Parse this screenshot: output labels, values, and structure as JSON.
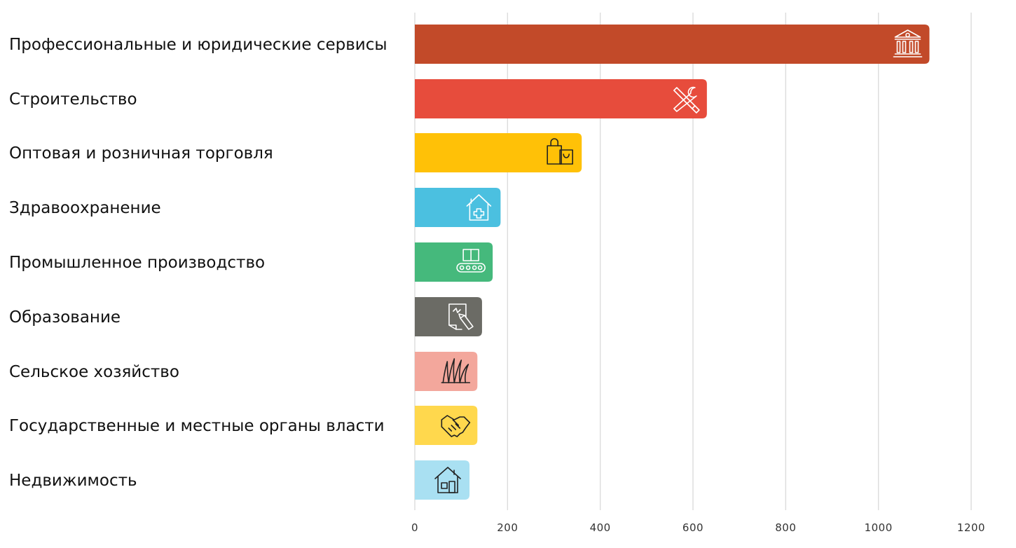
{
  "chart_data": {
    "type": "bar",
    "orientation": "horizontal",
    "categories": [
      "Профессиональные и юридические сервисы",
      "Строительство",
      "Оптовая и розничная торговля",
      "Здравоохранение",
      "Промышленное производство",
      "Образование",
      "Сельское хозяйство",
      "Государственные и местные органы власти",
      "Недвижимость"
    ],
    "values": [
      1110,
      630,
      360,
      185,
      168,
      145,
      135,
      135,
      118
    ],
    "colors": [
      "#c24a29",
      "#e74c3c",
      "#ffc107",
      "#4bc0e0",
      "#45b97c",
      "#6b6b65",
      "#f3a79c",
      "#ffd84d",
      "#a9e0f2"
    ],
    "icons": [
      "bank-icon",
      "tools-icon",
      "shopping-bags-icon",
      "medical-house-icon",
      "conveyor-box-icon",
      "paper-pencil-icon",
      "grass-icon",
      "handshake-icon",
      "house-icon"
    ],
    "icon_colors": [
      "#ffffff",
      "#ffffff",
      "#222222",
      "#ffffff",
      "#ffffff",
      "#ffffff",
      "#222222",
      "#222222",
      "#222222"
    ],
    "xticks": [
      0,
      200,
      400,
      600,
      800,
      1000,
      1200
    ],
    "xlim": [
      0,
      1200
    ],
    "grid": true,
    "legend": "none",
    "title": "",
    "xlabel": "",
    "ylabel": ""
  }
}
